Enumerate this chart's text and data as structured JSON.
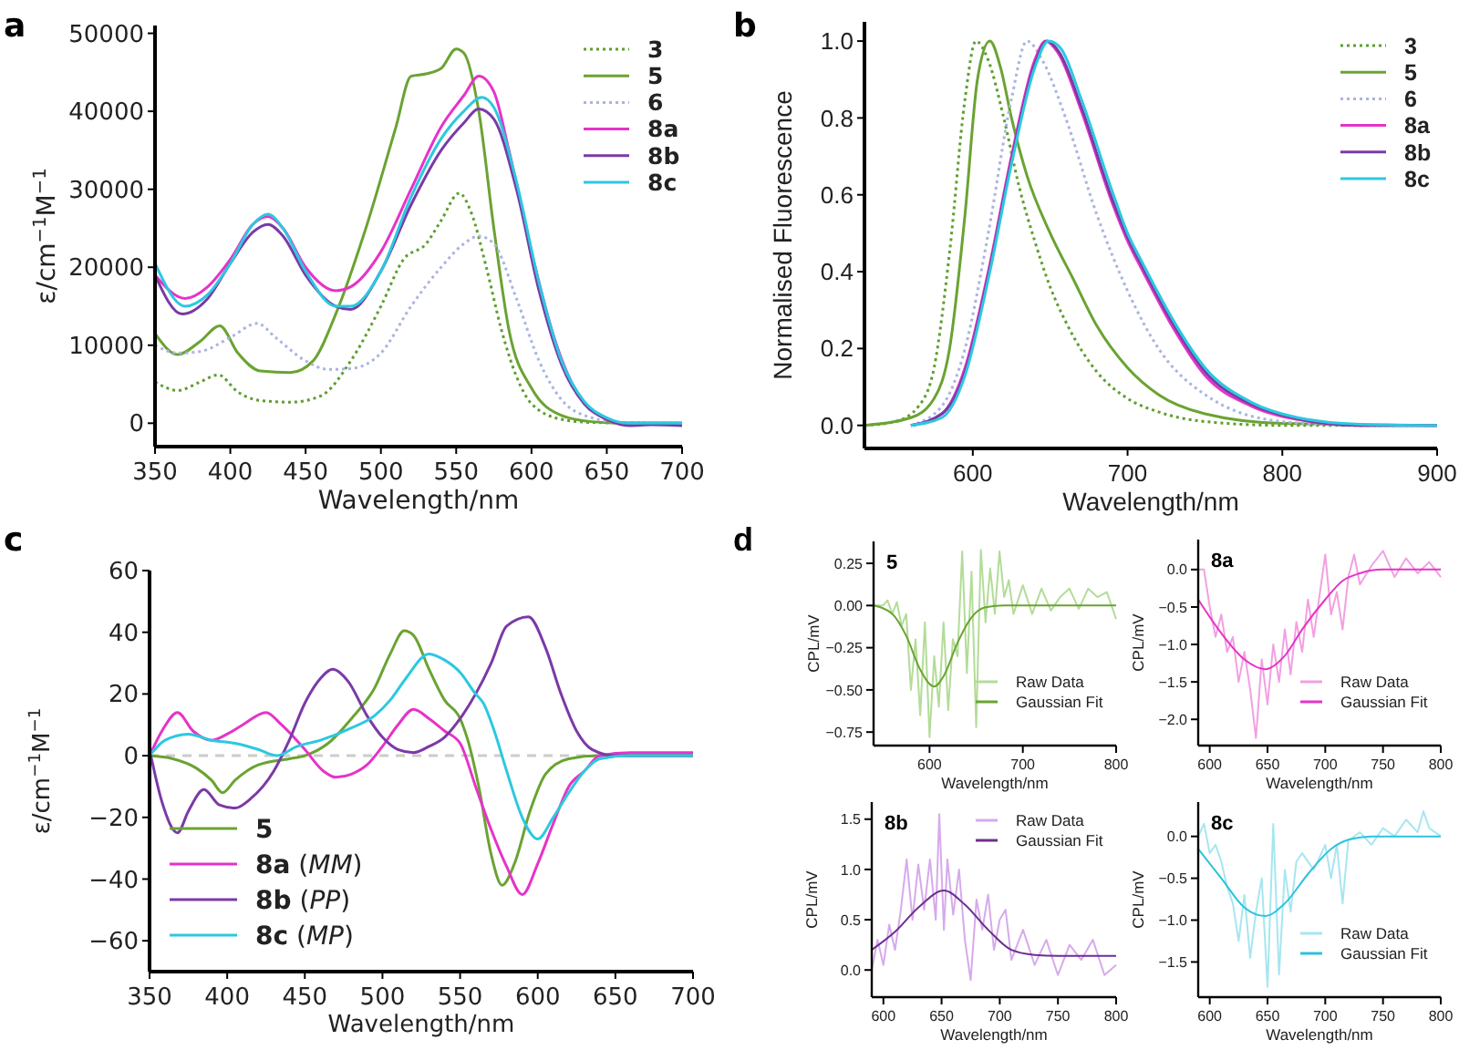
{
  "chart_data": [
    {
      "type": "line",
      "title": "a",
      "xlabel": "Wavelength/nm",
      "ylabel": "ε/cm$^{−1}$M$^{−1}$",
      "xlim": [
        350,
        700
      ],
      "ylim": [
        -3000,
        51000
      ],
      "xticks": [
        350,
        400,
        450,
        500,
        550,
        600,
        650,
        700
      ],
      "yticks": [
        0,
        10000,
        20000,
        30000,
        40000,
        50000
      ],
      "legend": "top right",
      "series": [
        {
          "name": "3",
          "color": "#5e9e2e",
          "line_style": "dotted",
          "x": [
            350,
            365,
            380,
            392,
            405,
            420,
            440,
            460,
            480,
            500,
            515,
            530,
            540,
            552,
            560,
            570,
            580,
            590,
            600,
            620,
            640,
            700
          ],
          "values": [
            5300,
            4200,
            5300,
            6200,
            4000,
            2900,
            2700,
            3500,
            8000,
            15000,
            21000,
            23000,
            26000,
            29500,
            27000,
            20000,
            12000,
            6000,
            2500,
            500,
            100,
            0
          ]
        },
        {
          "name": "5",
          "color": "#6aa332",
          "line_style": "solid",
          "x": [
            350,
            365,
            380,
            393,
            405,
            420,
            440,
            455,
            470,
            490,
            510,
            520,
            530,
            540,
            550,
            555,
            565,
            575,
            585,
            600,
            620,
            640,
            660,
            700
          ],
          "values": [
            11500,
            8800,
            10500,
            12500,
            9000,
            6700,
            6500,
            8000,
            14000,
            25000,
            38000,
            44500,
            44800,
            45500,
            48000,
            47500,
            40000,
            25000,
            12000,
            4500,
            1000,
            200,
            0,
            0
          ]
        },
        {
          "name": "6",
          "color": "#a9b4e0",
          "line_style": "dotted",
          "x": [
            350,
            365,
            380,
            400,
            418,
            430,
            450,
            465,
            480,
            500,
            520,
            540,
            555,
            565,
            575,
            590,
            605,
            620,
            640,
            660,
            700
          ],
          "values": [
            10000,
            9000,
            9200,
            11000,
            12800,
            11000,
            8000,
            6900,
            7000,
            9000,
            15000,
            20000,
            23000,
            24000,
            23000,
            16000,
            8000,
            3000,
            700,
            100,
            0
          ]
        },
        {
          "name": "8a",
          "color": "#e633c8",
          "line_style": "solid",
          "x": [
            350,
            370,
            385,
            400,
            415,
            425,
            435,
            450,
            470,
            480,
            500,
            520,
            540,
            555,
            565,
            575,
            585,
            600,
            615,
            630,
            645,
            660,
            700
          ],
          "values": [
            19000,
            16000,
            17500,
            21000,
            25500,
            26500,
            25000,
            20000,
            17000,
            17500,
            22000,
            30000,
            38000,
            42000,
            44500,
            42500,
            35000,
            22000,
            11000,
            4000,
            1000,
            0,
            0
          ]
        },
        {
          "name": "8b",
          "color": "#7a3aa6",
          "line_style": "solid",
          "x": [
            350,
            368,
            385,
            400,
            415,
            425,
            435,
            450,
            470,
            480,
            500,
            520,
            540,
            555,
            565,
            575,
            590,
            605,
            620,
            635,
            650,
            665,
            680,
            700
          ],
          "values": [
            19000,
            14000,
            16000,
            20500,
            24500,
            25500,
            24000,
            19000,
            15000,
            14600,
            19500,
            28000,
            35000,
            38500,
            40300,
            39000,
            30000,
            17000,
            7500,
            2500,
            500,
            -300,
            -200,
            -300
          ]
        },
        {
          "name": "8c",
          "color": "#2cc8e0",
          "line_style": "solid",
          "x": [
            350,
            370,
            385,
            400,
            415,
            425,
            435,
            450,
            470,
            480,
            500,
            520,
            540,
            555,
            567,
            575,
            590,
            605,
            620,
            635,
            650,
            665,
            700
          ],
          "values": [
            20500,
            15000,
            16500,
            20500,
            25500,
            26800,
            25000,
            19500,
            15000,
            15000,
            19500,
            29000,
            36500,
            40000,
            41800,
            40500,
            31000,
            18000,
            8000,
            2800,
            700,
            0,
            0
          ]
        }
      ]
    },
    {
      "type": "line",
      "title": "b",
      "xlabel": "Wavelength/nm",
      "ylabel": "Normalised Fluorescence",
      "xlim": [
        530,
        900
      ],
      "ylim": [
        -0.06,
        1.05
      ],
      "xticks": [
        600,
        700,
        800,
        900
      ],
      "yticks": [
        {
          "value": 0,
          "label": "0.0"
        },
        {
          "value": 0.2,
          "label": "0.2"
        },
        {
          "value": 0.4,
          "label": "0.4"
        },
        {
          "value": 0.6,
          "label": "0.6"
        },
        {
          "value": 0.8,
          "label": "0.8"
        },
        {
          "value": 1,
          "label": "1.0"
        }
      ],
      "legend": "top right",
      "series": [
        {
          "name": "3",
          "color": "#5e9e2e",
          "line_style": "dotted",
          "x": [
            530,
            550,
            565,
            575,
            585,
            595,
            602,
            610,
            620,
            630,
            640,
            650,
            660,
            680,
            700,
            720,
            750,
            800,
            900
          ],
          "values": [
            0,
            0.01,
            0.05,
            0.15,
            0.45,
            0.85,
            1.0,
            0.95,
            0.8,
            0.62,
            0.48,
            0.36,
            0.27,
            0.14,
            0.07,
            0.035,
            0.01,
            0,
            0
          ]
        },
        {
          "name": "5",
          "color": "#6aa332",
          "line_style": "solid",
          "x": [
            530,
            560,
            575,
            585,
            595,
            603,
            611,
            618,
            625,
            635,
            650,
            665,
            680,
            700,
            720,
            750,
            800,
            900
          ],
          "values": [
            0,
            0.02,
            0.07,
            0.2,
            0.55,
            0.9,
            1.0,
            0.93,
            0.8,
            0.65,
            0.5,
            0.38,
            0.26,
            0.15,
            0.08,
            0.03,
            0.005,
            0
          ]
        },
        {
          "name": "6",
          "color": "#a9b4e0",
          "line_style": "dotted",
          "x": [
            560,
            580,
            595,
            610,
            625,
            635,
            645,
            660,
            680,
            700,
            720,
            750,
            800,
            850,
            900
          ],
          "values": [
            0,
            0.05,
            0.2,
            0.5,
            0.85,
            1.0,
            0.95,
            0.8,
            0.55,
            0.35,
            0.2,
            0.08,
            0.01,
            0,
            0
          ]
        },
        {
          "name": "8a",
          "color": "#e633c8",
          "line_style": "solid",
          "x": [
            560,
            580,
            595,
            610,
            625,
            640,
            647,
            655,
            670,
            690,
            700,
            710,
            730,
            750,
            780,
            810,
            850,
            900
          ],
          "values": [
            0,
            0.03,
            0.15,
            0.4,
            0.7,
            0.95,
            1.0,
            0.97,
            0.82,
            0.58,
            0.48,
            0.4,
            0.25,
            0.13,
            0.05,
            0.015,
            0,
            0
          ]
        },
        {
          "name": "8b",
          "color": "#7a3aa6",
          "line_style": "solid",
          "x": [
            560,
            580,
            595,
            610,
            625,
            640,
            648,
            656,
            670,
            690,
            700,
            710,
            730,
            750,
            780,
            810,
            850,
            900
          ],
          "values": [
            0,
            0.03,
            0.14,
            0.39,
            0.69,
            0.94,
            1.0,
            0.97,
            0.83,
            0.59,
            0.49,
            0.41,
            0.26,
            0.14,
            0.055,
            0.017,
            0,
            0
          ]
        },
        {
          "name": "8c",
          "color": "#2cc8e0",
          "line_style": "solid",
          "x": [
            560,
            580,
            595,
            610,
            625,
            640,
            649,
            657,
            670,
            690,
            700,
            710,
            730,
            750,
            780,
            810,
            850,
            900
          ],
          "values": [
            0,
            0.02,
            0.13,
            0.38,
            0.68,
            0.93,
            1.0,
            0.98,
            0.85,
            0.61,
            0.5,
            0.42,
            0.27,
            0.15,
            0.06,
            0.02,
            0.003,
            0
          ]
        }
      ]
    },
    {
      "type": "line",
      "title": "c",
      "xlabel": "Wavelength/nm",
      "ylabel": "ε/cm$^{−1}$M$^{−1}$",
      "xlim": [
        350,
        700
      ],
      "ylim": [
        -70,
        60
      ],
      "xticks": [
        350,
        400,
        450,
        500,
        550,
        600,
        650,
        700
      ],
      "yticks": [
        {
          "value": -60,
          "label": "−60"
        },
        {
          "value": -40,
          "label": "−40"
        },
        {
          "value": -20,
          "label": "−20"
        },
        0,
        20,
        40,
        60
      ],
      "legend": "bottom left",
      "ref_lines": [
        {
          "axis": "y",
          "value": 0,
          "color": "#cccccc",
          "line_style": "dashed"
        }
      ],
      "series": [
        {
          "name": "5",
          "color": "#6aa332",
          "line_style": "solid",
          "x": [
            350,
            365,
            380,
            390,
            397,
            405,
            420,
            440,
            450,
            465,
            480,
            495,
            505,
            514,
            520,
            530,
            540,
            550,
            555,
            562,
            570,
            577,
            585,
            595,
            605,
            620,
            640,
            700
          ],
          "values": [
            0,
            -1,
            -4,
            -8,
            -12,
            -8,
            -3,
            -1,
            0,
            4,
            12,
            22,
            33,
            40.5,
            39,
            28,
            18,
            12,
            5,
            -10,
            -32,
            -42,
            -35,
            -18,
            -6,
            -1,
            0,
            0
          ]
        },
        {
          "name": "8a (MM)",
          "color": "#e633c8",
          "line_style": "solid",
          "x": [
            350,
            358,
            368,
            378,
            390,
            400,
            410,
            425,
            435,
            450,
            462,
            470,
            480,
            490,
            500,
            510,
            520,
            530,
            540,
            550,
            560,
            570,
            580,
            590,
            600,
            610,
            620,
            630,
            640,
            660,
            680,
            700
          ],
          "values": [
            0,
            8,
            14,
            8,
            5,
            7,
            10,
            14,
            10,
            2,
            -5,
            -7,
            -6,
            -3,
            3,
            10,
            15,
            12,
            8,
            4,
            -10,
            -24,
            -36,
            -45,
            -35,
            -22,
            -10,
            -5,
            0,
            1,
            1,
            1
          ]
        },
        {
          "name": "8b (PP)",
          "color": "#7a3aa6",
          "line_style": "solid",
          "x": [
            350,
            358,
            368,
            375,
            385,
            395,
            405,
            415,
            430,
            440,
            450,
            460,
            468,
            478,
            490,
            500,
            510,
            520,
            530,
            540,
            550,
            560,
            570,
            580,
            594,
            605,
            615,
            625,
            635,
            650,
            700
          ],
          "values": [
            2,
            -15,
            -25,
            -18,
            -11,
            -16,
            -17,
            -14,
            -5,
            5,
            17,
            25,
            28,
            24,
            13,
            6,
            2,
            1,
            3,
            6,
            12,
            20,
            30,
            42,
            45,
            35,
            20,
            8,
            2,
            0,
            0
          ]
        },
        {
          "name": "8c (MP)",
          "color": "#2cc8e0",
          "line_style": "solid",
          "x": [
            350,
            360,
            375,
            390,
            405,
            420,
            432,
            445,
            460,
            480,
            495,
            505,
            515,
            530,
            540,
            550,
            560,
            565,
            572,
            580,
            590,
            600,
            610,
            620,
            630,
            640,
            660,
            700
          ],
          "values": [
            0,
            5,
            7,
            5,
            4,
            2,
            0,
            3,
            5,
            9,
            13,
            18,
            25,
            33,
            31,
            27,
            20,
            17,
            8,
            -5,
            -20,
            -27,
            -20,
            -12,
            -5,
            -1,
            0,
            0
          ]
        }
      ]
    },
    {
      "type": "line",
      "title": "5",
      "annotations": [
        "d"
      ],
      "xlabel": "Wavelength/nm",
      "ylabel": "CPL/mV",
      "xlim": [
        540,
        800
      ],
      "ylim": [
        -0.83,
        0.38
      ],
      "xticks": [
        600,
        700,
        800
      ],
      "yticks": [
        {
          "value": 0.25,
          "label": "0.25"
        },
        {
          "value": 0,
          "label": "0.00"
        },
        {
          "value": -0.25,
          "label": "−0.25"
        },
        {
          "value": -0.5,
          "label": "−0.50"
        },
        {
          "value": -0.75,
          "label": "−0.75"
        }
      ],
      "legend": "bottom right",
      "series": [
        {
          "name": "Raw Data",
          "color": "#b3dc98",
          "line_style": "solid",
          "x": [
            540,
            550,
            555,
            560,
            565,
            570,
            575,
            580,
            585,
            590,
            595,
            600,
            605,
            610,
            615,
            620,
            625,
            630,
            635,
            640,
            645,
            650,
            655,
            660,
            665,
            670,
            675,
            680,
            685,
            690,
            700,
            710,
            720,
            730,
            740,
            750,
            760,
            770,
            780,
            790,
            800
          ],
          "values": [
            0,
            0,
            0.03,
            -0.05,
            0.02,
            -0.12,
            -0.05,
            -0.5,
            -0.2,
            -0.65,
            -0.1,
            -0.78,
            -0.3,
            -0.6,
            -0.1,
            -0.62,
            -0.2,
            -0.3,
            0.32,
            -0.4,
            0.2,
            -0.72,
            0.33,
            -0.1,
            0.22,
            -0.05,
            0.32,
            0.05,
            0.15,
            -0.05,
            0.12,
            -0.05,
            0.1,
            -0.03,
            0.05,
            0.1,
            -0.02,
            0.1,
            0.05,
            0.08,
            -0.08
          ]
        },
        {
          "name": "Gaussian Fit",
          "color": "#6aa332",
          "line_style": "solid",
          "x": [
            540,
            560,
            575,
            590,
            605,
            615,
            630,
            645,
            660,
            680,
            800
          ],
          "values": [
            0,
            -0.05,
            -0.18,
            -0.38,
            -0.48,
            -0.42,
            -0.22,
            -0.07,
            -0.01,
            0,
            0
          ]
        }
      ]
    },
    {
      "type": "line",
      "title": "8a",
      "xlabel": "Wavelength/nm",
      "ylabel": "CPL/mV",
      "xlim": [
        590,
        800
      ],
      "ylim": [
        -2.35,
        0.4
      ],
      "xticks": [
        600,
        650,
        700,
        750,
        800
      ],
      "yticks": [
        {
          "value": 0,
          "label": "0.0"
        },
        {
          "value": -0.5,
          "label": "−0.5"
        },
        {
          "value": -1,
          "label": "−1.0"
        },
        {
          "value": -1.5,
          "label": "−1.5"
        },
        {
          "value": -2,
          "label": "−2.0"
        }
      ],
      "legend": "bottom right",
      "series": [
        {
          "name": "Raw Data",
          "color": "#f2a0e2",
          "line_style": "solid",
          "x": [
            590,
            595,
            600,
            605,
            610,
            615,
            620,
            625,
            630,
            635,
            640,
            645,
            650,
            655,
            660,
            665,
            670,
            675,
            680,
            685,
            690,
            700,
            705,
            710,
            715,
            720,
            725,
            730,
            740,
            750,
            760,
            770,
            780,
            790,
            800
          ],
          "values": [
            0,
            0,
            -0.5,
            -0.9,
            -0.6,
            -1.1,
            -0.9,
            -1.5,
            -1.1,
            -1.6,
            -2.25,
            -1.2,
            -1.8,
            -1.0,
            -1.5,
            -0.8,
            -1.4,
            -0.7,
            -1.1,
            -0.4,
            -0.9,
            0.2,
            -0.6,
            -0.3,
            -0.8,
            -0.1,
            0.2,
            -0.2,
            0.05,
            0.25,
            -0.1,
            0.15,
            -0.05,
            0.1,
            -0.1
          ]
        },
        {
          "name": "Gaussian Fit",
          "color": "#e633c8",
          "line_style": "solid",
          "x": [
            590,
            610,
            630,
            648,
            665,
            680,
            700,
            715,
            730,
            750,
            800
          ],
          "values": [
            -0.4,
            -0.85,
            -1.2,
            -1.33,
            -1.15,
            -0.8,
            -0.4,
            -0.15,
            -0.05,
            0,
            0
          ]
        }
      ]
    },
    {
      "type": "line",
      "title": "8b",
      "xlabel": "Wavelength/nm",
      "ylabel": "CPL/mV",
      "xlim": [
        590,
        800
      ],
      "ylim": [
        -0.27,
        1.67
      ],
      "xticks": [
        600,
        650,
        700,
        750,
        800
      ],
      "yticks": [
        {
          "value": 0,
          "label": "0.0"
        },
        {
          "value": 0.5,
          "label": "0.5"
        },
        {
          "value": 1,
          "label": "1.0"
        },
        {
          "value": 1.5,
          "label": "1.5"
        }
      ],
      "legend": "top right",
      "series": [
        {
          "name": "Raw Data",
          "color": "#d6aaec",
          "line_style": "solid",
          "x": [
            590,
            595,
            600,
            605,
            610,
            615,
            620,
            625,
            630,
            635,
            640,
            645,
            648,
            652,
            655,
            660,
            665,
            670,
            675,
            680,
            685,
            690,
            695,
            700,
            705,
            710,
            720,
            730,
            740,
            750,
            760,
            770,
            780,
            790,
            800
          ],
          "values": [
            0,
            0.3,
            0.05,
            0.45,
            0.2,
            0.6,
            1.1,
            0.5,
            1.05,
            0.6,
            1.1,
            0.5,
            1.55,
            0.4,
            1.1,
            0.55,
            1.0,
            0.3,
            -0.1,
            0.7,
            0.4,
            0.75,
            0.2,
            0.5,
            0.6,
            0.1,
            0.4,
            0.05,
            0.3,
            -0.05,
            0.25,
            0.1,
            0.3,
            -0.05,
            0.05
          ]
        },
        {
          "name": "Gaussian Fit",
          "color": "#6d2e91",
          "line_style": "solid",
          "x": [
            590,
            610,
            630,
            652,
            670,
            690,
            710,
            730,
            750,
            800
          ],
          "values": [
            0.2,
            0.38,
            0.62,
            0.79,
            0.65,
            0.4,
            0.2,
            0.15,
            0.14,
            0.14
          ]
        }
      ]
    },
    {
      "type": "line",
      "title": "8c",
      "xlabel": "Wavelength/nm",
      "ylabel": "CPL/mV",
      "xlim": [
        590,
        800
      ],
      "ylim": [
        -1.92,
        0.41
      ],
      "xticks": [
        600,
        650,
        700,
        750,
        800
      ],
      "yticks": [
        {
          "value": 0,
          "label": "0.0"
        },
        {
          "value": -0.5,
          "label": "−0.5"
        },
        {
          "value": -1,
          "label": "−1.0"
        },
        {
          "value": -1.5,
          "label": "−1.5"
        }
      ],
      "legend": "bottom right",
      "series": [
        {
          "name": "Raw Data",
          "color": "#a6e6f0",
          "line_style": "solid",
          "x": [
            590,
            595,
            600,
            605,
            610,
            615,
            620,
            625,
            630,
            635,
            640,
            645,
            650,
            655,
            660,
            665,
            670,
            675,
            680,
            690,
            700,
            705,
            710,
            715,
            720,
            730,
            740,
            750,
            760,
            770,
            780,
            785,
            790,
            800
          ],
          "values": [
            0,
            0.15,
            -0.2,
            -0.1,
            -0.3,
            -0.6,
            -0.8,
            -1.25,
            -0.7,
            -1.45,
            -0.9,
            -0.5,
            -1.8,
            0.15,
            -1.65,
            -0.4,
            -0.9,
            -0.3,
            -0.2,
            -0.4,
            -0.1,
            -0.5,
            -0.1,
            -0.8,
            -0.05,
            0.05,
            -0.1,
            0.1,
            0,
            0.2,
            0.05,
            0.3,
            0.1,
            0
          ]
        },
        {
          "name": "Gaussian Fit",
          "color": "#2cc3dc",
          "line_style": "solid",
          "x": [
            590,
            610,
            630,
            648,
            665,
            685,
            705,
            720,
            740,
            800
          ],
          "values": [
            -0.15,
            -0.5,
            -0.85,
            -0.95,
            -0.8,
            -0.45,
            -0.15,
            -0.04,
            0,
            0
          ]
        }
      ]
    }
  ]
}
